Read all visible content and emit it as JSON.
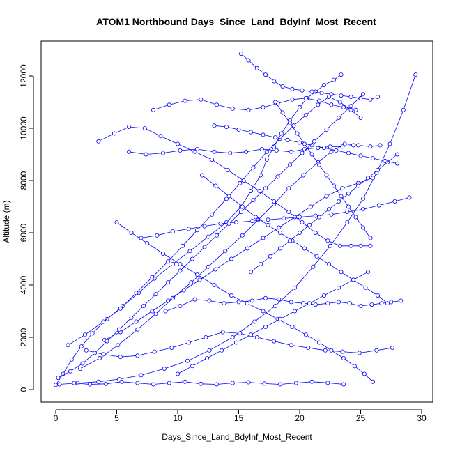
{
  "chart_data": {
    "type": "line",
    "title": "ATOM1 Northbound Days_Since_Land_BdyInf_Most_Recent",
    "xlabel": "Days_Since_Land_BdyInf_Most_Recent",
    "ylabel": "Altitude (m)",
    "xlim": [
      0,
      30
    ],
    "ylim": [
      0,
      12900
    ],
    "x_ticks": [
      0,
      5,
      10,
      15,
      20,
      25,
      30
    ],
    "y_ticks": [
      0,
      2000,
      4000,
      6000,
      8000,
      10000,
      12000
    ],
    "grid": false,
    "legend": "none",
    "marker": "open-circle",
    "series_color": "#0000ff",
    "series": [
      {
        "x": [
          0.0,
          0.6,
          1.3,
          2.1,
          3.0,
          4.2,
          5.5,
          6.8,
          8.1,
          9.6,
          11.0,
          12.5,
          14.0,
          15.2,
          16.0,
          16.8,
          17.3,
          17.9,
          18.5,
          19.2,
          20.0,
          20.6,
          21.3,
          22.0,
          22.8,
          23.4
        ],
        "y": [
          180,
          600,
          1150,
          1650,
          2150,
          2700,
          3200,
          3700,
          4250,
          4800,
          5300,
          5850,
          6400,
          7000,
          7600,
          8200,
          8800,
          9300,
          9800,
          10300,
          10800,
          11150,
          11400,
          11650,
          11850,
          12050
        ]
      },
      {
        "x": [
          0.3,
          1.8,
          3.5,
          5.2,
          7.0,
          8.9,
          10.8,
          12.6,
          14.5,
          16.3,
          18.0,
          19.6,
          21.1,
          22.5,
          23.9,
          25.2,
          26.3,
          27.4,
          28.5,
          29.5
        ],
        "y": [
          200,
          250,
          300,
          400,
          550,
          800,
          1100,
          1500,
          2000,
          2600,
          3200,
          3900,
          4700,
          5500,
          6400,
          7300,
          8300,
          9400,
          10700,
          12050
        ]
      },
      {
        "x": [
          1.0,
          2.4,
          3.9,
          5.3,
          6.6,
          7.9,
          9.2,
          10.4,
          11.6,
          12.8,
          14.0,
          15.1,
          16.2,
          17.3,
          18.4,
          19.5,
          20.5,
          21.5,
          22.4,
          23.3,
          24.2,
          25.0
        ],
        "y": [
          1700,
          2100,
          2600,
          3100,
          3700,
          4300,
          4900,
          5500,
          6100,
          6700,
          7300,
          7900,
          8500,
          9100,
          9600,
          10100,
          10500,
          10900,
          11200,
          11000,
          10700,
          10400
        ]
      },
      {
        "x": [
          2.0,
          3.6,
          5.1,
          6.7,
          8.2,
          9.6,
          11.1,
          12.5,
          13.9,
          15.3,
          16.6,
          17.9,
          19.1,
          20.3,
          21.5,
          22.6,
          23.7,
          24.8,
          25.8,
          26.6
        ],
        "y": [
          800,
          1200,
          1700,
          2300,
          2900,
          3500,
          4100,
          4700,
          5300,
          5900,
          6500,
          7100,
          7700,
          8200,
          8700,
          9100,
          9400,
          9350,
          9300,
          9350
        ]
      },
      {
        "x": [
          3.5,
          4.8,
          6.0,
          7.3,
          8.6,
          10.0,
          11.4,
          12.8,
          14.1,
          15.4,
          16.7,
          17.9,
          19.1,
          20.2,
          21.3,
          22.3,
          23.3,
          24.2,
          25.0,
          25.8
        ],
        "y": [
          9500,
          9800,
          10050,
          10000,
          9700,
          9400,
          9100,
          8800,
          8400,
          8000,
          7600,
          7200,
          6800,
          6400,
          6000,
          5700,
          5500,
          5500,
          5500,
          5500
        ]
      },
      {
        "x": [
          5.0,
          6.2,
          7.5,
          8.8,
          10.2,
          11.6,
          13.0,
          14.4,
          15.7,
          17.0,
          18.2,
          19.4,
          20.5,
          21.6,
          22.6,
          23.6,
          24.5,
          25.3,
          26.0
        ],
        "y": [
          6400,
          6000,
          5600,
          5200,
          4800,
          4400,
          4000,
          3600,
          3300,
          3000,
          2700,
          2400,
          2100,
          1800,
          1500,
          1200,
          900,
          600,
          300
        ]
      },
      {
        "x": [
          6.0,
          7.4,
          8.8,
          10.2,
          11.6,
          13.0,
          14.3,
          15.6,
          16.9,
          18.1,
          19.3,
          20.4,
          21.5,
          22.5,
          23.5,
          24.4
        ],
        "y": [
          9100,
          9000,
          9050,
          9150,
          9200,
          9100,
          9050,
          9100,
          9200,
          9150,
          9100,
          9200,
          9250,
          9300,
          9300,
          9350
        ]
      },
      {
        "x": [
          8.0,
          9.3,
          10.6,
          11.9,
          13.2,
          14.5,
          15.8,
          17.0,
          18.2,
          19.4,
          20.5,
          21.6,
          22.6,
          23.6,
          24.6
        ],
        "y": [
          10700,
          10900,
          11050,
          11100,
          10900,
          10750,
          10700,
          10800,
          10950,
          11100,
          11150,
          11050,
          10900,
          10800,
          10700
        ]
      },
      {
        "x": [
          15.2,
          15.8,
          16.5,
          17.2,
          17.9,
          18.6,
          19.4,
          20.2,
          21.0,
          21.8,
          22.6,
          23.4,
          24.2,
          25.0,
          25.8,
          26.4
        ],
        "y": [
          12850,
          12600,
          12300,
          12050,
          11800,
          11600,
          11500,
          11450,
          11400,
          11350,
          11300,
          11250,
          11200,
          11150,
          11100,
          11200
        ]
      },
      {
        "x": [
          9.0,
          10.2,
          11.4,
          12.6,
          13.8,
          15.0,
          16.1,
          17.2,
          18.3,
          19.3,
          20.3,
          21.3,
          22.3,
          23.2,
          24.1,
          25.0,
          25.9,
          26.7,
          27.5,
          28.3
        ],
        "y": [
          3000,
          3200,
          3450,
          3400,
          3300,
          3350,
          3400,
          3500,
          3450,
          3350,
          3300,
          3250,
          3300,
          3350,
          3300,
          3200,
          3250,
          3300,
          3350,
          3400
        ]
      },
      {
        "x": [
          1.5,
          2.8,
          4.1,
          5.4,
          6.7,
          8.0,
          9.3,
          10.6,
          11.9,
          13.2,
          14.5,
          15.8,
          17.1,
          18.4,
          19.7,
          21.0,
          22.3,
          23.6
        ],
        "y": [
          250,
          200,
          220,
          300,
          250,
          200,
          250,
          300,
          220,
          200,
          250,
          280,
          230,
          200,
          250,
          300,
          260,
          200
        ]
      },
      {
        "x": [
          4.0,
          5.3,
          6.6,
          7.9,
          9.2,
          10.5,
          11.8,
          13.1,
          14.4,
          15.7,
          17.0,
          18.3,
          19.6,
          20.9,
          22.2,
          23.5,
          24.8,
          26.0
        ],
        "y": [
          1900,
          2200,
          2600,
          3000,
          3400,
          3800,
          4200,
          4600,
          5000,
          5400,
          5800,
          6200,
          6600,
          7000,
          7400,
          7700,
          7900,
          8100
        ]
      },
      {
        "x": [
          12.0,
          13.1,
          14.2,
          15.3,
          16.4,
          17.4,
          18.4,
          19.4,
          20.4,
          21.4,
          22.4,
          23.4,
          24.4,
          25.4,
          26.4,
          27.2
        ],
        "y": [
          8200,
          7800,
          7400,
          7000,
          6600,
          6300,
          6000,
          5700,
          5400,
          5100,
          4800,
          4500,
          4200,
          3900,
          3600,
          3300
        ]
      },
      {
        "x": [
          16.0,
          16.8,
          17.6,
          18.4,
          19.2,
          20.0,
          20.8,
          21.6,
          22.4,
          23.2,
          24.0,
          24.8,
          25.6,
          26.4,
          27.2,
          28.0
        ],
        "y": [
          4500,
          4800,
          5100,
          5400,
          5700,
          6000,
          6300,
          6600,
          6900,
          7200,
          7500,
          7800,
          8100,
          8400,
          8700,
          9000
        ]
      },
      {
        "x": [
          2.5,
          3.9,
          5.3,
          6.7,
          8.1,
          9.5,
          10.9,
          12.3,
          13.7,
          15.1,
          16.5,
          17.9,
          19.3,
          20.7,
          22.1,
          23.5,
          24.9,
          26.3,
          27.6
        ],
        "y": [
          1500,
          1350,
          1250,
          1300,
          1450,
          1600,
          1800,
          2000,
          2200,
          2150,
          2000,
          1850,
          1700,
          1600,
          1500,
          1450,
          1400,
          1500,
          1600
        ]
      },
      {
        "x": [
          7.0,
          8.3,
          9.6,
          10.9,
          12.2,
          13.5,
          14.8,
          16.1,
          17.4,
          18.7,
          20.0,
          21.3,
          22.6,
          23.9,
          25.2,
          26.5,
          27.8,
          29.0
        ],
        "y": [
          5800,
          5900,
          6050,
          6150,
          6250,
          6350,
          6400,
          6450,
          6500,
          6550,
          6600,
          6650,
          6700,
          6800,
          6900,
          7050,
          7200,
          7350
        ]
      },
      {
        "x": [
          10.0,
          11.2,
          12.4,
          13.6,
          14.8,
          16.0,
          17.2,
          18.4,
          19.6,
          20.8,
          22.0,
          23.2,
          24.4,
          25.6
        ],
        "y": [
          600,
          900,
          1200,
          1500,
          1800,
          2100,
          2400,
          2700,
          3000,
          3300,
          3600,
          3900,
          4200,
          4500
        ]
      },
      {
        "x": [
          13.0,
          14.0,
          15.0,
          16.0,
          17.0,
          18.0,
          19.0,
          20.0,
          21.0,
          22.0,
          23.0,
          24.0,
          25.0,
          26.0,
          27.0,
          28.0
        ],
        "y": [
          10100,
          10050,
          9950,
          9850,
          9750,
          9650,
          9550,
          9450,
          9350,
          9250,
          9150,
          9050,
          8950,
          8850,
          8750,
          8650
        ]
      },
      {
        "x": [
          0.2,
          1.2,
          2.2,
          3.2,
          4.2,
          5.2,
          6.2,
          7.2,
          8.2,
          9.2,
          10.2,
          11.2,
          12.2,
          13.2,
          14.2,
          15.2,
          16.2,
          17.2,
          18.2,
          19.2,
          20.2,
          21.2,
          22.2,
          23.2,
          24.2,
          25.2
        ],
        "y": [
          450,
          700,
          1000,
          1400,
          1850,
          2300,
          2750,
          3200,
          3650,
          4100,
          4550,
          5000,
          5450,
          5900,
          6350,
          6800,
          7250,
          7700,
          8150,
          8600,
          9050,
          9500,
          9950,
          10400,
          10850,
          11300
        ]
      },
      {
        "x": [
          18.0,
          18.6,
          19.2,
          19.8,
          20.4,
          21.0,
          21.6,
          22.2,
          22.8,
          23.4,
          24.0,
          24.6,
          25.2,
          25.8
        ],
        "y": [
          11000,
          10600,
          10200,
          9800,
          9400,
          9000,
          8600,
          8200,
          7800,
          7400,
          7000,
          6600,
          6200,
          5800
        ]
      }
    ]
  }
}
